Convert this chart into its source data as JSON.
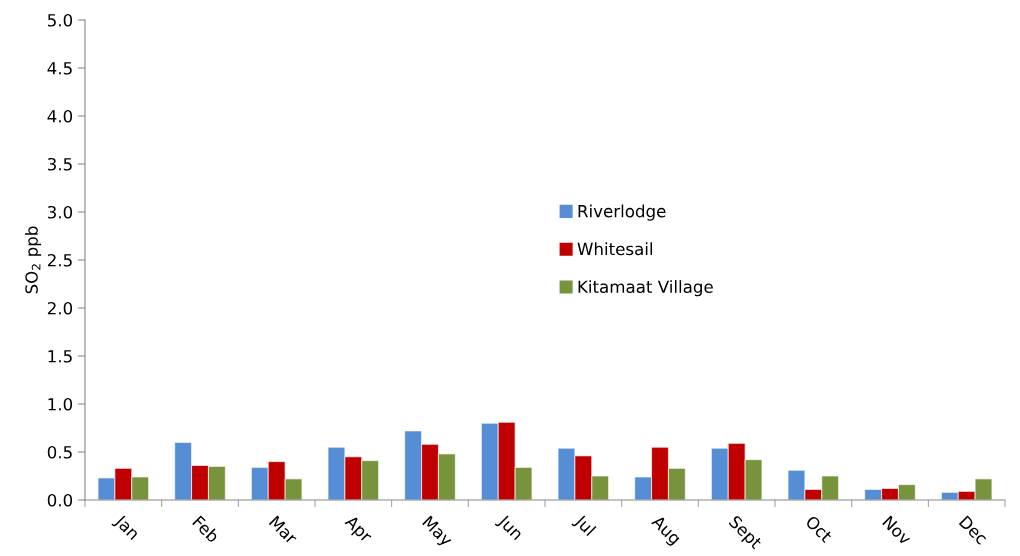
{
  "chart_data": {
    "type": "bar",
    "ylabel": "SO$_{2}$ ppb",
    "categories": [
      "Jan",
      "Feb",
      "Mar",
      "Apr",
      "May",
      "Jun",
      "Jul",
      "Aug",
      "Sept",
      "Oct",
      "Nov",
      "Dec"
    ],
    "series": [
      {
        "name": "Riverlodge",
        "color": "#558ed5",
        "values": [
          0.23,
          0.6,
          0.34,
          0.55,
          0.72,
          0.8,
          0.54,
          0.24,
          0.54,
          0.31,
          0.11,
          0.08
        ]
      },
      {
        "name": "Whitesail",
        "color": "#c00000",
        "values": [
          0.33,
          0.36,
          0.4,
          0.45,
          0.58,
          0.81,
          0.46,
          0.55,
          0.59,
          0.11,
          0.12,
          0.09
        ]
      },
      {
        "name": "Kitamaat Village",
        "color": "#77933c",
        "values": [
          0.24,
          0.35,
          0.22,
          0.41,
          0.48,
          0.34,
          0.25,
          0.33,
          0.42,
          0.25,
          0.16,
          0.22
        ]
      }
    ],
    "ylim": [
      0,
      5.0
    ],
    "yticks": [
      {
        "value": 0,
        "label": "0.0"
      },
      {
        "value": 0.5,
        "label": "0.5"
      },
      {
        "value": 1,
        "label": "1.0"
      },
      {
        "value": 1.5,
        "label": "1.5"
      },
      {
        "value": 2,
        "label": "2.0"
      },
      {
        "value": 2.5,
        "label": "2.5"
      },
      {
        "value": 3,
        "label": "3.0"
      },
      {
        "value": 3.5,
        "label": "3.5"
      },
      {
        "value": 4,
        "label": "4.0"
      },
      {
        "value": 4.5,
        "label": "4.5"
      },
      {
        "value": 5,
        "label": "5.0"
      }
    ],
    "grid": false,
    "legend": "center"
  }
}
